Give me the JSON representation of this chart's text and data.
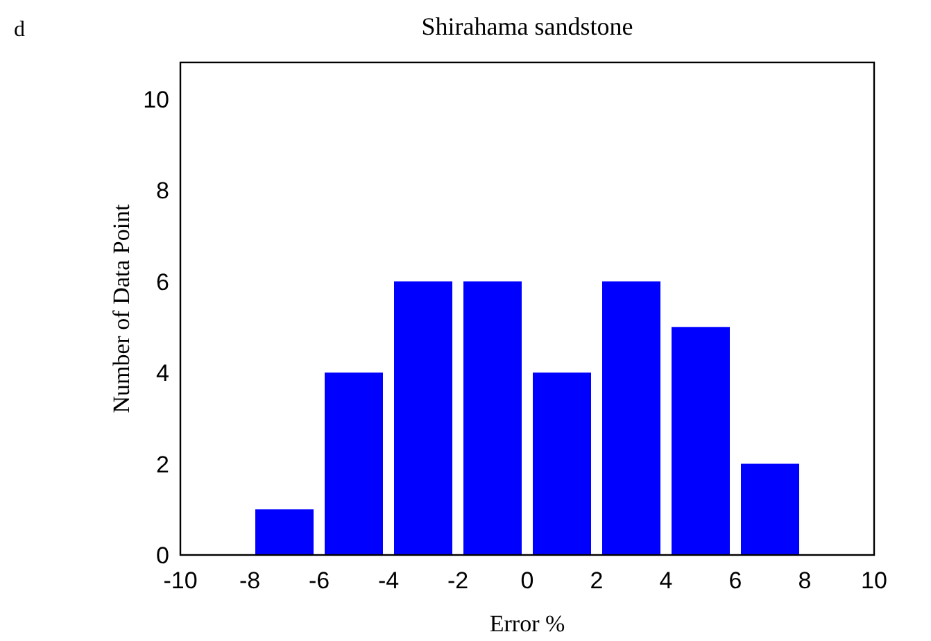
{
  "chart_data": {
    "type": "histogram",
    "title": "Shirahama sandstone",
    "xlabel": "Error %",
    "ylabel": "Number of Data Point",
    "annotations": [
      "d"
    ],
    "bins": [
      -8,
      -6,
      -4,
      -2,
      0,
      2,
      4,
      6,
      8
    ],
    "values": [
      1,
      4,
      6,
      6,
      4,
      6,
      5,
      2
    ],
    "color": "#0000ff",
    "xlim": [
      -10,
      10
    ],
    "xticks": [
      -10,
      -8,
      -6,
      -4,
      -2,
      0,
      2,
      4,
      6,
      8,
      10
    ],
    "ylim": [
      0,
      10.8
    ],
    "yticks": [
      0,
      2,
      4,
      6,
      8,
      10
    ],
    "grid": false
  }
}
